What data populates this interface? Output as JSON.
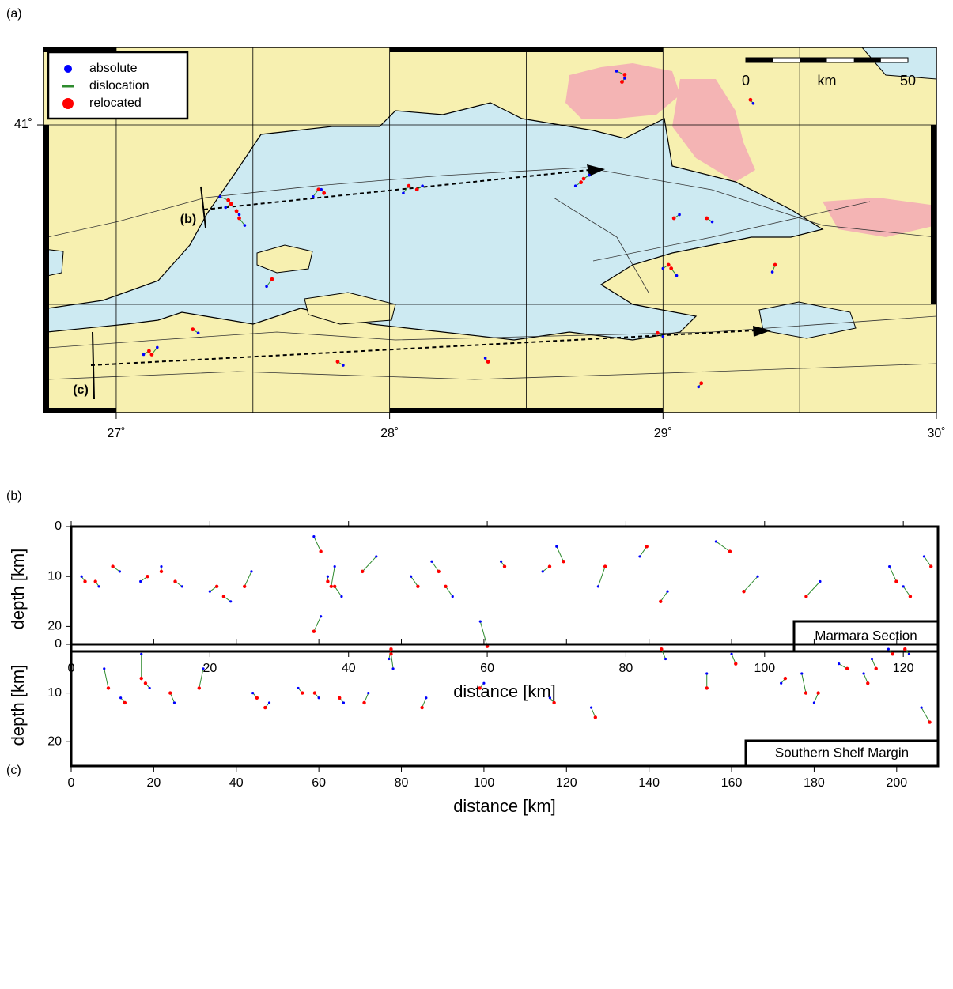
{
  "chart_data": [
    {
      "type": "map",
      "panel": "(a)",
      "xlim": [
        26.734,
        30.0
      ],
      "ylim": [
        40.198,
        41.216
      ],
      "xticks": [
        {
          "value": 27,
          "label": "27˚"
        },
        {
          "value": 28,
          "label": "28˚"
        },
        {
          "value": 29,
          "label": "29˚"
        },
        {
          "value": 30,
          "label": "30˚"
        }
      ],
      "yticks": [
        {
          "value": 41,
          "label": "41˚"
        }
      ],
      "xgrid": [
        27,
        27.5,
        28,
        28.5,
        29,
        29.5
      ],
      "ygrid": [
        40.5,
        41
      ],
      "grid": true,
      "legend": "top-left",
      "profile_labels": [
        "(b)",
        "(c)"
      ],
      "scale_bar": {
        "start": 0,
        "end": 50,
        "unit": "km"
      },
      "series": [
        {
          "name": "absolute",
          "color": "#0000ff",
          "x": [
            27.4,
            27.45,
            27.38,
            27.47,
            27.75,
            27.72,
            28.12,
            28.05,
            28.73,
            28.68,
            29.06,
            29.18,
            29.0,
            29.05,
            28.86,
            28.83,
            29.33,
            27.1,
            27.15,
            27.83,
            29.13,
            29.0,
            29.4,
            28.35,
            27.55,
            27.3
          ],
          "y": [
            40.77,
            40.75,
            40.8,
            40.72,
            40.82,
            40.8,
            40.83,
            40.81,
            40.86,
            40.83,
            40.75,
            40.73,
            40.6,
            40.58,
            41.13,
            41.15,
            41.06,
            40.36,
            40.38,
            40.33,
            40.27,
            40.41,
            40.59,
            40.35,
            40.55,
            40.42
          ]
        },
        {
          "name": "dislocation",
          "color": "#2e8b2e"
        },
        {
          "name": "relocated",
          "color": "#ff0000",
          "x": [
            27.42,
            27.44,
            27.41,
            27.45,
            27.76,
            27.74,
            28.1,
            28.07,
            28.71,
            28.7,
            29.04,
            29.16,
            29.02,
            29.03,
            28.85,
            28.86,
            29.32,
            27.12,
            27.13,
            27.81,
            29.14,
            28.98,
            29.41,
            28.36,
            27.57,
            27.28
          ],
          "y": [
            40.78,
            40.76,
            40.79,
            40.74,
            40.81,
            40.82,
            40.82,
            40.83,
            40.85,
            40.84,
            40.74,
            40.74,
            40.61,
            40.6,
            41.12,
            41.14,
            41.07,
            40.37,
            40.36,
            40.34,
            40.28,
            40.42,
            40.61,
            40.34,
            40.57,
            40.43
          ]
        }
      ]
    },
    {
      "type": "scatter",
      "panel": "(b)",
      "title": "Marmara Section",
      "xlabel": "distance [km]",
      "ylabel": "depth [km]",
      "xlim": [
        0,
        125
      ],
      "ylim": [
        25,
        0
      ],
      "xticks": [
        0,
        20,
        40,
        60,
        80,
        100,
        120
      ],
      "yticks": [
        0,
        10,
        20
      ],
      "series": [
        {
          "name": "absolute",
          "color": "#0000ff",
          "x": [
            1.5,
            4,
            7,
            10,
            13,
            16,
            20,
            23,
            26,
            35,
            37,
            38,
            39,
            36,
            44,
            49,
            52,
            55,
            62,
            68,
            70,
            76,
            82,
            86,
            93,
            99,
            108,
            118,
            120,
            123,
            59
          ],
          "y": [
            10,
            12,
            9,
            11,
            8,
            12,
            13,
            15,
            9,
            2,
            10,
            8,
            14,
            18,
            6,
            10,
            7,
            14,
            7,
            9,
            4,
            12,
            6,
            13,
            3,
            10,
            11,
            8,
            12,
            6,
            19
          ]
        },
        {
          "name": "dislocation",
          "color": "#2e8b2e"
        },
        {
          "name": "relocated",
          "color": "#ff0000",
          "x": [
            2,
            3.5,
            6,
            11,
            13,
            15,
            21,
            22,
            25,
            36,
            37,
            37.5,
            38,
            35,
            42,
            50,
            53,
            54,
            62.5,
            69,
            71,
            77,
            83,
            85,
            95,
            97,
            106,
            119,
            121,
            124,
            60
          ],
          "y": [
            11,
            11,
            8,
            10,
            9,
            11,
            12,
            14,
            12,
            5,
            11,
            12,
            12,
            21,
            9,
            12,
            9,
            12,
            8,
            8,
            7,
            8,
            4,
            15,
            5,
            13,
            14,
            11,
            14,
            8,
            24
          ]
        }
      ]
    },
    {
      "type": "scatter",
      "panel": "(c)",
      "title": "Southern Shelf Margin",
      "xlabel": "distance [km]",
      "ylabel": "depth [km]",
      "xlim": [
        0,
        210
      ],
      "ylim": [
        25,
        0
      ],
      "xticks": [
        0,
        20,
        40,
        60,
        80,
        100,
        120,
        140,
        160,
        180,
        200
      ],
      "yticks": [
        0,
        10,
        20
      ],
      "series": [
        {
          "name": "absolute",
          "color": "#0000ff",
          "x": [
            8,
            12,
            17,
            19,
            25,
            32,
            44,
            48,
            55,
            60,
            66,
            72,
            77,
            78,
            86,
            100,
            116,
            126,
            144,
            154,
            160,
            172,
            177,
            180,
            186,
            192,
            194,
            198,
            203,
            206
          ],
          "y": [
            5,
            11,
            2,
            9,
            12,
            5,
            10,
            12,
            9,
            11,
            12,
            10,
            3,
            5,
            11,
            8,
            11,
            13,
            3,
            6,
            2,
            8,
            6,
            12,
            4,
            6,
            3,
            1,
            2,
            13
          ]
        },
        {
          "name": "dislocation",
          "color": "#2e8b2e"
        },
        {
          "name": "relocated",
          "color": "#ff0000",
          "x": [
            9,
            13,
            17,
            18,
            24,
            31,
            45,
            47,
            56,
            59,
            65,
            71,
            77.5,
            77.5,
            85,
            99,
            117,
            127,
            143,
            154,
            161,
            173,
            178,
            181,
            188,
            193,
            195,
            199,
            202,
            208
          ],
          "y": [
            9,
            12,
            7,
            8,
            10,
            9,
            11,
            13,
            10,
            10,
            11,
            12,
            1,
            2,
            13,
            9,
            12,
            15,
            1,
            9,
            4,
            7,
            10,
            10,
            5,
            8,
            5,
            2,
            1,
            16
          ]
        }
      ]
    }
  ]
}
